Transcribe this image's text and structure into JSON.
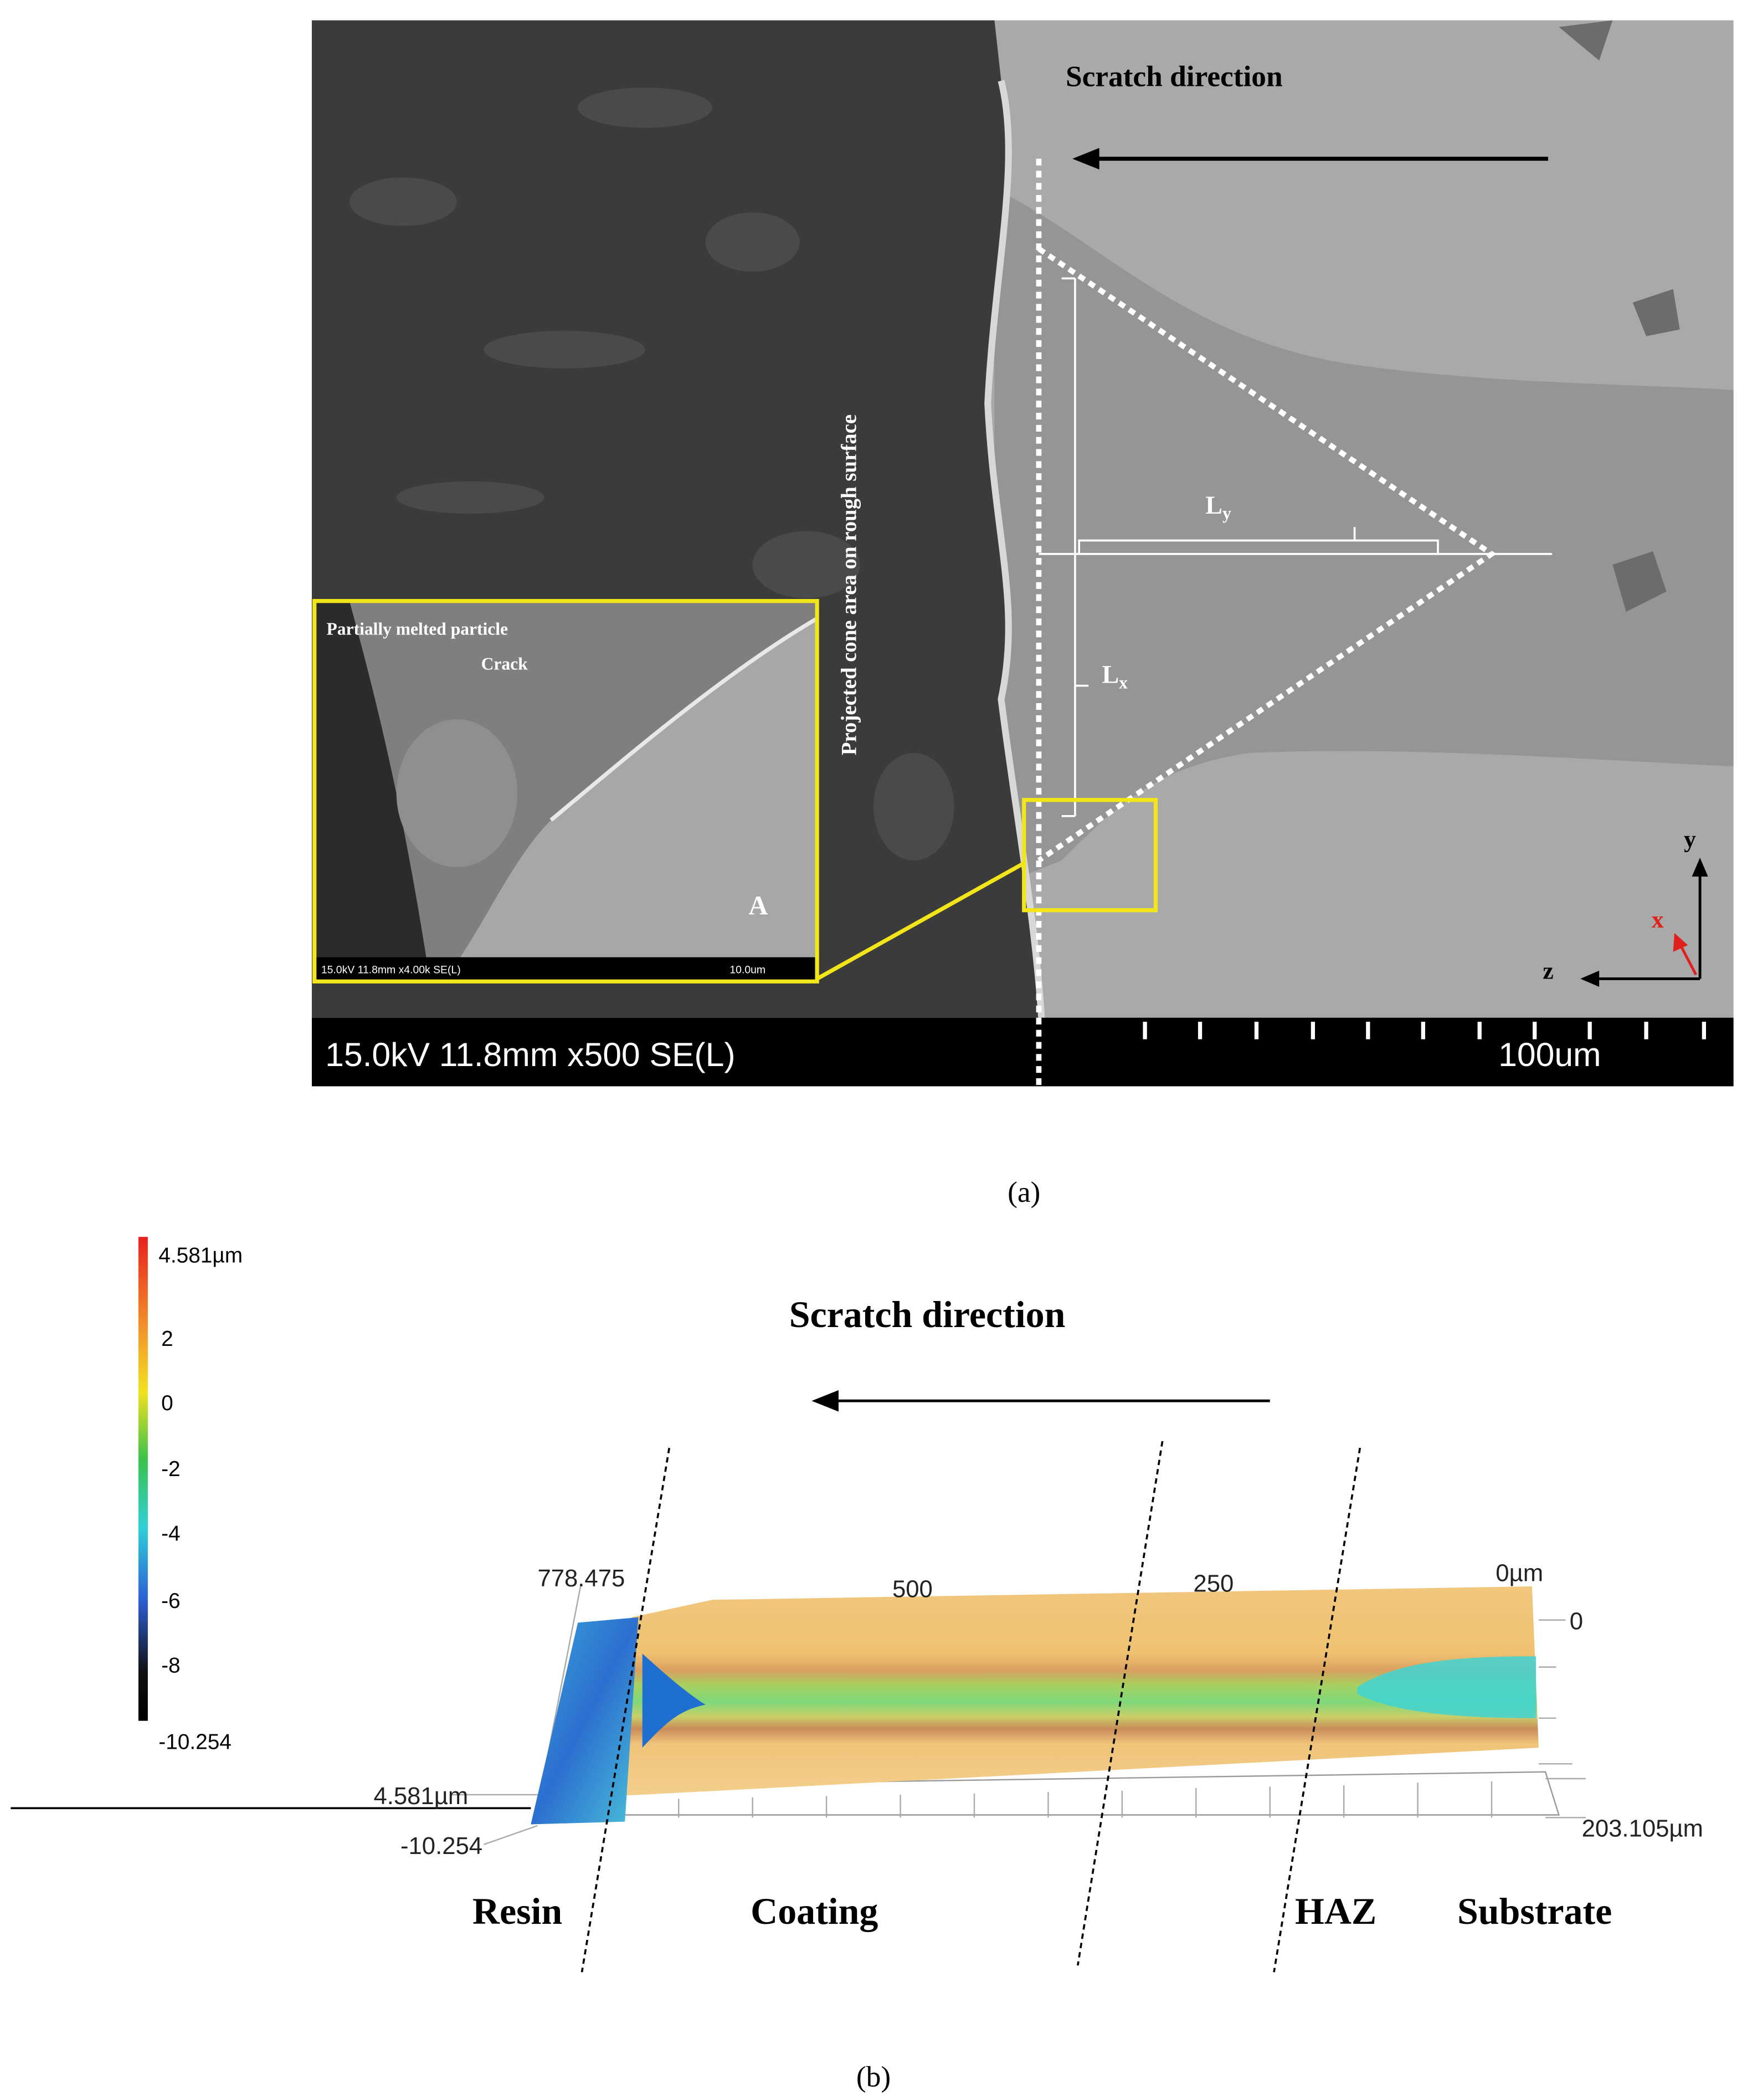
{
  "panel_a": {
    "scratch_direction": "Scratch direction",
    "cone_label": "Projected  cone area on rough surface",
    "ly": {
      "main": "L",
      "sub": "y"
    },
    "lx": {
      "main": "L",
      "sub": "x"
    },
    "inset": {
      "particle": "Partially melted particle",
      "crack": "Crack",
      "label": "A",
      "info": "15.0kV 11.8mm x4.00k SE(L)",
      "scale": "10.0um"
    },
    "axes": {
      "y": "y",
      "x": "x",
      "z": "z"
    },
    "info_bar": {
      "settings": "15.0kV 11.8mm x500 SE(L)",
      "scale": "100um"
    },
    "caption": "(a)"
  },
  "panel_b": {
    "colorbar_labels": [
      "4.581µm",
      "2",
      "0",
      "-2",
      "-4",
      "-6",
      "-8",
      "-10.254"
    ],
    "scratch_direction": "Scratch direction",
    "axis_labels": {
      "x_start": "778.475",
      "x_mid1": "500",
      "x_mid2": "250",
      "x_end": "0µm",
      "y_zero": "0",
      "z_max": "4.581µm",
      "z_min": "-10.254",
      "y_end": "203.105µm"
    },
    "regions": [
      "Resin",
      "Coating",
      "HAZ",
      "Substrate"
    ],
    "caption": "(b)"
  }
}
